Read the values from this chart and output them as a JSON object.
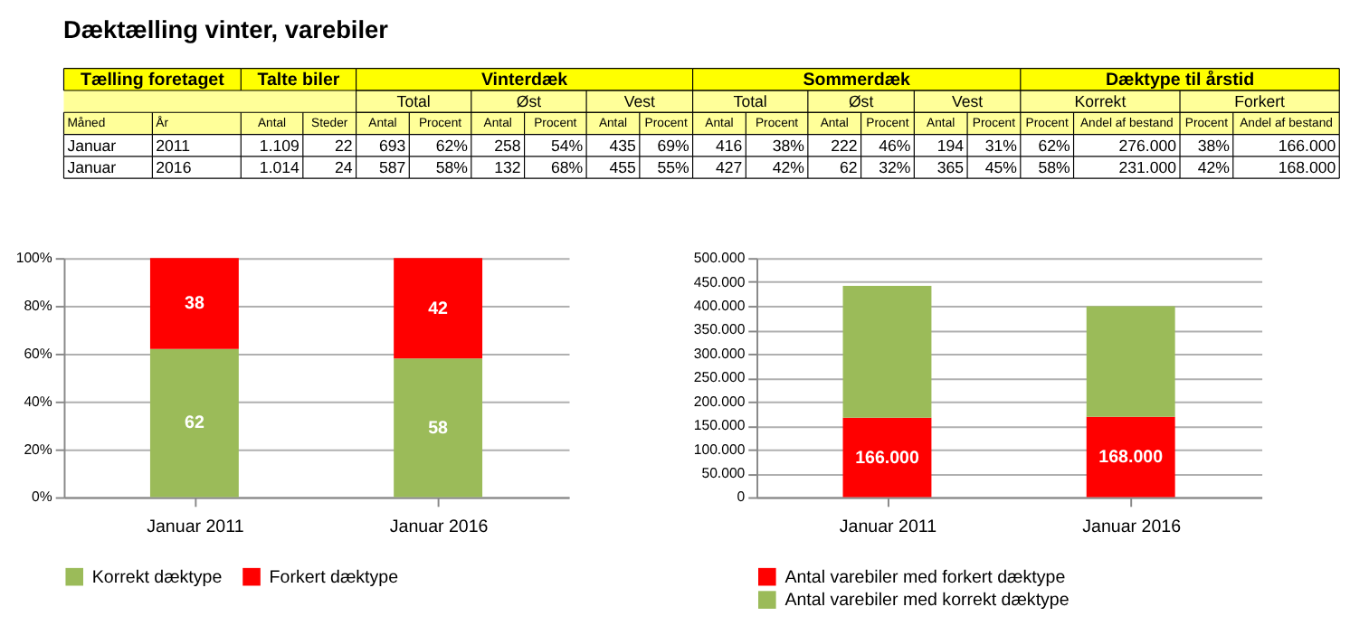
{
  "chart_data": [
    {
      "type": "other",
      "title": "Dæktælling vinter, varebiler",
      "annotations": [
        "Tælling foretaget",
        "Talte biler",
        "Vinterdæk",
        "Sommerdæk",
        "Dæktype til årstid",
        "Total",
        "Øst",
        "Vest",
        "Total",
        "Øst",
        "Vest",
        "Korrekt",
        "Forkert",
        "Måned",
        "År",
        "Antal",
        "Steder",
        "Antal",
        "Procent",
        "Antal",
        "Procent",
        "Antal",
        "Procent",
        "Antal",
        "Procent",
        "Antal",
        "Procent",
        "Antal",
        "Procent",
        "Procent",
        "Andel af bestand",
        "Procent",
        "Andel af bestand",
        "Januar",
        "2011",
        "1.109",
        "22",
        "693",
        "62%",
        "258",
        "54%",
        "435",
        "69%",
        "416",
        "38%",
        "222",
        "46%",
        "194",
        "31%",
        "62%",
        "276.000",
        "38%",
        "166.000",
        "Januar",
        "2016",
        "1.014",
        "24",
        "587",
        "58%",
        "132",
        "68%",
        "455",
        "55%",
        "427",
        "42%",
        "62",
        "32%",
        "365",
        "45%",
        "58%",
        "231.000",
        "42%",
        "168.000"
      ]
    },
    {
      "type": "bar",
      "stacked": true,
      "categories": [
        "Januar 2011",
        "Januar 2016"
      ],
      "series": [
        {
          "name": "Korrekt dæktype",
          "color": "#9bbb59",
          "values": [
            62,
            58
          ]
        },
        {
          "name": "Forkert dæktype",
          "color": "#ff0000",
          "values": [
            38,
            42
          ]
        }
      ],
      "ylim": [
        0,
        100
      ],
      "yticks": [
        {
          "value": 0,
          "label": "0%"
        },
        {
          "value": 20,
          "label": "20%"
        },
        {
          "value": 40,
          "label": "40%"
        },
        {
          "value": 60,
          "label": "60%"
        },
        {
          "value": 80,
          "label": "80%"
        },
        {
          "value": 100,
          "label": "100%"
        }
      ],
      "data_labels": true,
      "grid": "y",
      "legend": "bottom"
    },
    {
      "type": "bar",
      "stacked": true,
      "categories": [
        "Januar 2011",
        "Januar 2016"
      ],
      "series": [
        {
          "name": "Antal varebiler med forkert dæktype",
          "color": "#ff0000",
          "values": [
            166000,
            168000
          ],
          "value_labels": [
            "166.000",
            "168.000"
          ]
        },
        {
          "name": "Antal varebiler med korrekt dæktype",
          "color": "#9bbb59",
          "values": [
            276000,
            231000
          ]
        }
      ],
      "ylim": [
        0,
        500000
      ],
      "yticks": [
        0,
        {
          "value": 50000,
          "label": "50.000"
        },
        {
          "value": 100000,
          "label": "100.000"
        },
        {
          "value": 150000,
          "label": "150.000"
        },
        {
          "value": 200000,
          "label": "200.000"
        },
        {
          "value": 250000,
          "label": "250.000"
        },
        {
          "value": 300000,
          "label": "300.000"
        },
        {
          "value": 350000,
          "label": "350.000"
        },
        {
          "value": 400000,
          "label": "400.000"
        },
        {
          "value": 450000,
          "label": "450.000"
        },
        {
          "value": 500000,
          "label": "500.000"
        }
      ],
      "grid": "y",
      "legend": "bottom"
    }
  ]
}
